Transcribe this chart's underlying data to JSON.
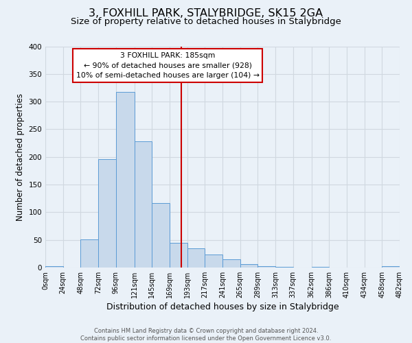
{
  "title": "3, FOXHILL PARK, STALYBRIDGE, SK15 2GA",
  "subtitle": "Size of property relative to detached houses in Stalybridge",
  "xlabel": "Distribution of detached houses by size in Stalybridge",
  "ylabel": "Number of detached properties",
  "footer_lines": [
    "Contains HM Land Registry data © Crown copyright and database right 2024.",
    "Contains public sector information licensed under the Open Government Licence v3.0."
  ],
  "bin_edges": [
    0,
    24,
    48,
    72,
    96,
    121,
    145,
    169,
    193,
    217,
    241,
    265,
    289,
    313,
    337,
    362,
    386,
    410,
    434,
    458,
    482
  ],
  "bin_labels": [
    "0sqm",
    "24sqm",
    "48sqm",
    "72sqm",
    "96sqm",
    "121sqm",
    "145sqm",
    "169sqm",
    "193sqm",
    "217sqm",
    "241sqm",
    "265sqm",
    "289sqm",
    "313sqm",
    "337sqm",
    "362sqm",
    "386sqm",
    "410sqm",
    "434sqm",
    "458sqm",
    "482sqm"
  ],
  "counts": [
    2,
    0,
    51,
    196,
    318,
    228,
    116,
    45,
    35,
    24,
    15,
    6,
    2,
    1,
    0,
    1,
    0,
    0,
    0,
    2
  ],
  "bar_color": "#c8d9eb",
  "bar_edge_color": "#5b9bd5",
  "property_size": 185,
  "vline_color": "#cc0000",
  "annotation_box_text_lines": [
    "3 FOXHILL PARK: 185sqm",
    "← 90% of detached houses are smaller (928)",
    "10% of semi-detached houses are larger (104) →"
  ],
  "annotation_box_edge_color": "#cc0000",
  "ylim": [
    0,
    400
  ],
  "yticks": [
    0,
    50,
    100,
    150,
    200,
    250,
    300,
    350,
    400
  ],
  "background_color": "#eaf1f8",
  "grid_color": "#d0d8e0",
  "title_fontsize": 11.5,
  "subtitle_fontsize": 9.5,
  "xlabel_fontsize": 9,
  "ylabel_fontsize": 8.5,
  "annotation_fontsize": 7.8,
  "footer_fontsize": 6.0,
  "tick_fontsize": 7.0,
  "ytick_fontsize": 7.5
}
